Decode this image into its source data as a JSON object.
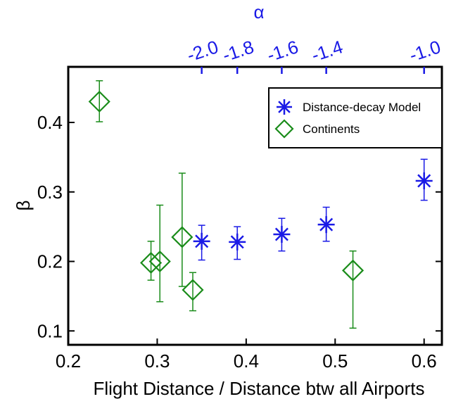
{
  "chart_data": {
    "type": "scatter",
    "xlabel": "Flight Distance / Distance btw all Airports",
    "ylabel": "β",
    "top_axis_label": "α",
    "xlim": [
      0.2,
      0.62
    ],
    "ylim": [
      0.08,
      0.48
    ],
    "x_ticks": [
      0.2,
      0.3,
      0.4,
      0.5,
      0.6
    ],
    "x_tick_labels": [
      "0.2",
      "0.3",
      "0.4",
      "0.5",
      "0.6"
    ],
    "y_ticks": [
      0.1,
      0.2,
      0.3,
      0.4
    ],
    "y_tick_labels": [
      "0.1",
      "0.2",
      "0.3",
      "0.4"
    ],
    "top_ticks": [
      0.35,
      0.39,
      0.44,
      0.49,
      0.6
    ],
    "top_tick_labels": [
      "-2.0",
      "-1.8",
      "-1.6",
      "-1.4",
      "-1.0"
    ],
    "legend_position": "top-right",
    "series": [
      {
        "name": "Distance-decay Model",
        "marker": "asterisk",
        "color": "#1a1ae6",
        "points": [
          {
            "x": 0.35,
            "y": 0.229,
            "err_low": 0.202,
            "err_high": 0.252
          },
          {
            "x": 0.39,
            "y": 0.228,
            "err_low": 0.203,
            "err_high": 0.25
          },
          {
            "x": 0.44,
            "y": 0.239,
            "err_low": 0.215,
            "err_high": 0.262
          },
          {
            "x": 0.49,
            "y": 0.253,
            "err_low": 0.229,
            "err_high": 0.278
          },
          {
            "x": 0.6,
            "y": 0.316,
            "err_low": 0.288,
            "err_high": 0.347
          }
        ]
      },
      {
        "name": "Continents",
        "marker": "diamond",
        "color": "#1a8c1a",
        "points": [
          {
            "x": 0.235,
            "y": 0.43,
            "err_low": 0.401,
            "err_high": 0.46
          },
          {
            "x": 0.293,
            "y": 0.198,
            "err_low": 0.173,
            "err_high": 0.229
          },
          {
            "x": 0.303,
            "y": 0.2,
            "err_low": 0.142,
            "err_high": 0.281
          },
          {
            "x": 0.328,
            "y": 0.235,
            "err_low": 0.164,
            "err_high": 0.327
          },
          {
            "x": 0.34,
            "y": 0.159,
            "err_low": 0.129,
            "err_high": 0.184
          },
          {
            "x": 0.52,
            "y": 0.187,
            "err_low": 0.104,
            "err_high": 0.215
          }
        ]
      }
    ]
  }
}
